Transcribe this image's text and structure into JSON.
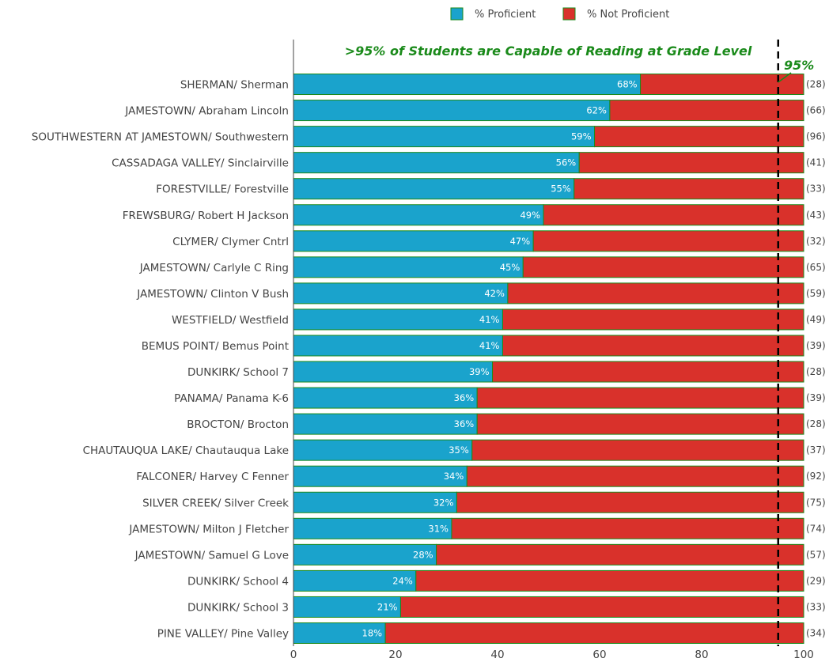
{
  "chart_data": {
    "type": "bar",
    "orientation": "horizontal",
    "stacked": true,
    "categories": [
      "SHERMAN/ Sherman",
      "JAMESTOWN/ Abraham Lincoln",
      "SOUTHWESTERN AT JAMESTOWN/ Southwestern",
      "CASSADAGA VALLEY/ Sinclairville",
      "FORESTVILLE/ Forestville",
      "FREWSBURG/ Robert H Jackson",
      "CLYMER/ Clymer Cntrl",
      "JAMESTOWN/ Carlyle C Ring",
      "JAMESTOWN/ Clinton V Bush",
      "WESTFIELD/ Westfield",
      "BEMUS POINT/ Bemus Point",
      "DUNKIRK/ School 7",
      "PANAMA/ Panama K-6",
      "BROCTON/ Brocton",
      "CHAUTAUQUA LAKE/ Chautauqua Lake",
      "FALCONER/ Harvey C Fenner",
      "SILVER CREEK/ Silver Creek",
      "JAMESTOWN/ Milton J Fletcher",
      "JAMESTOWN/ Samuel G Love",
      "DUNKIRK/ School 4",
      "DUNKIRK/ School 3",
      "PINE VALLEY/ Pine Valley"
    ],
    "series": [
      {
        "name": "% Proficient",
        "color": "#1aa3cc",
        "values": [
          68,
          62,
          59,
          56,
          55,
          49,
          47,
          45,
          42,
          41,
          41,
          39,
          36,
          36,
          35,
          34,
          32,
          31,
          28,
          24,
          21,
          18
        ]
      },
      {
        "name": "% Not Proficient",
        "color": "#d9312b",
        "values": [
          32,
          38,
          41,
          44,
          45,
          51,
          53,
          55,
          58,
          59,
          59,
          61,
          64,
          64,
          65,
          66,
          68,
          69,
          72,
          76,
          79,
          82
        ]
      }
    ],
    "data_labels": [
      "68%",
      "62%",
      "59%",
      "56%",
      "55%",
      "49%",
      "47%",
      "45%",
      "42%",
      "41%",
      "41%",
      "39%",
      "36%",
      "36%",
      "35%",
      "34%",
      "32%",
      "31%",
      "28%",
      "24%",
      "21%",
      "18%"
    ],
    "counts": [
      "(28)",
      "(66)",
      "(96)",
      "(41)",
      "(33)",
      "(43)",
      "(32)",
      "(65)",
      "(59)",
      "(49)",
      "(39)",
      "(28)",
      "(39)",
      "(28)",
      "(37)",
      "(92)",
      "(75)",
      "(74)",
      "(57)",
      "(29)",
      "(33)",
      "(34)"
    ],
    "xlim": [
      0,
      100
    ],
    "xticks": [
      0,
      20,
      40,
      60,
      80,
      100
    ],
    "reference_line": {
      "value": 95,
      "label": "95%",
      "style": "dashed",
      "color": "#000000"
    },
    "annotation": {
      "text": ">95% of Students are Capable of Reading at Grade Level",
      "color": "#1a8a1a"
    },
    "bar_outline_color": "#1a8a1a",
    "legend": {
      "position": "top-center"
    },
    "grid": false
  }
}
